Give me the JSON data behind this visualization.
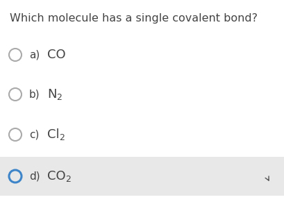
{
  "question": "Which molecule has a single covalent bond?",
  "options": [
    {
      "label": "a)",
      "formula_parts": [
        {
          "text": "CO",
          "sub": false
        }
      ],
      "selected": false,
      "circle_color": "#aaaaaa"
    },
    {
      "label": "b)",
      "formula_parts": [
        {
          "text": "N",
          "sub": false
        },
        {
          "text": "2",
          "sub": true
        }
      ],
      "selected": false,
      "circle_color": "#aaaaaa"
    },
    {
      "label": "c)",
      "formula_parts": [
        {
          "text": "Cl",
          "sub": false
        },
        {
          "text": "2",
          "sub": true
        }
      ],
      "selected": false,
      "circle_color": "#aaaaaa"
    },
    {
      "label": "d)",
      "formula_parts": [
        {
          "text": "CO",
          "sub": false
        },
        {
          "text": "2",
          "sub": true
        }
      ],
      "selected": true,
      "circle_color": "#3d85c8"
    }
  ],
  "question_fontsize": 11.5,
  "option_label_fontsize": 11,
  "formula_fontsize": 13,
  "sub_fontsize": 9,
  "background_color": "#ffffff",
  "highlight_color": "#e8e8e8",
  "question_color": "#444444",
  "option_color": "#444444",
  "fig_width": 4.1,
  "fig_height": 2.94,
  "dpi": 100
}
